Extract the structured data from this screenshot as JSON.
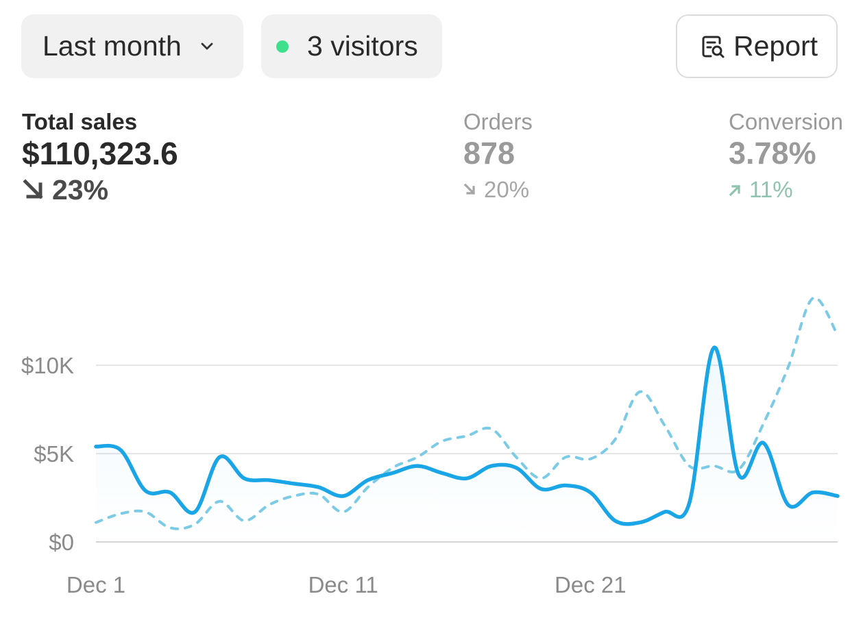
{
  "controls": {
    "period_label": "Last month",
    "visitors_label": "3 visitors",
    "report_label": "Report"
  },
  "metrics": [
    {
      "label": "Total sales",
      "value": "$110,323.6",
      "change": "23%",
      "direction": "down"
    },
    {
      "label": "Orders",
      "value": "878",
      "change": "20%",
      "direction": "down"
    },
    {
      "label": "Conversion",
      "value": "3.78%",
      "change": "11%",
      "direction": "up"
    }
  ],
  "colors": {
    "accent": "#1aa5e6",
    "comparison": "#7ccbe6",
    "live_dot": "#3ee08c",
    "positive": "#8ec4ad"
  },
  "chart_data": {
    "type": "line",
    "x": [
      "Dec 1",
      "Dec 2",
      "Dec 3",
      "Dec 4",
      "Dec 5",
      "Dec 6",
      "Dec 7",
      "Dec 8",
      "Dec 9",
      "Dec 10",
      "Dec 11",
      "Dec 12",
      "Dec 13",
      "Dec 14",
      "Dec 15",
      "Dec 16",
      "Dec 17",
      "Dec 18",
      "Dec 19",
      "Dec 20",
      "Dec 21",
      "Dec 22",
      "Dec 23",
      "Dec 24",
      "Dec 25",
      "Dec 26",
      "Dec 27",
      "Dec 28",
      "Dec 29",
      "Dec 30",
      "Dec 31"
    ],
    "xticks": [
      "Dec 1",
      "Dec 11",
      "Dec 21"
    ],
    "yticks": [
      "$0",
      "$5K",
      "$10K"
    ],
    "ylim": [
      0,
      14000
    ],
    "series": [
      {
        "style": "solid",
        "values": [
          5400,
          5200,
          2900,
          2800,
          1700,
          4800,
          3600,
          3500,
          3300,
          3100,
          2600,
          3500,
          3900,
          4300,
          3900,
          3600,
          4300,
          4200,
          3000,
          3200,
          2800,
          1200,
          1100,
          1700,
          2200,
          11000,
          3800,
          5600,
          2100,
          2800,
          2600
        ]
      },
      {
        "style": "dashed",
        "values": [
          1100,
          1600,
          1700,
          800,
          1000,
          2300,
          1200,
          2100,
          2600,
          2700,
          1700,
          3100,
          4200,
          4800,
          5700,
          6000,
          6400,
          4800,
          3600,
          4800,
          4700,
          5800,
          8500,
          6600,
          4300,
          4300,
          4100,
          6700,
          9900,
          13800,
          11700
        ]
      }
    ]
  }
}
